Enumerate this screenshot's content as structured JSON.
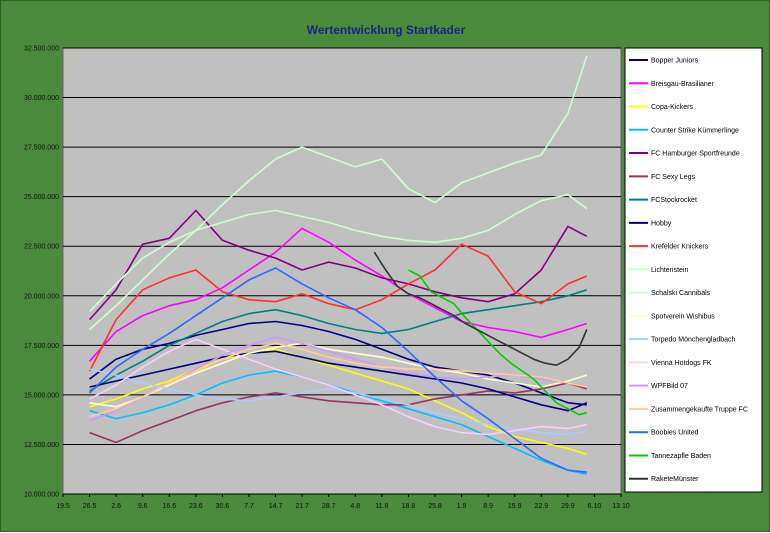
{
  "chart_data": {
    "type": "line",
    "title": "Wertentwicklung Startkader",
    "xlabel": "",
    "ylabel": "",
    "ylim": [
      10000000,
      32500000
    ],
    "y_ticks": [
      "10.000.000",
      "12.500.000",
      "15.000.000",
      "17.500.000",
      "20.000.000",
      "22.500.000",
      "25.000.000",
      "27.500.000",
      "30.000.000",
      "32.500.000"
    ],
    "y_tick_values": [
      10000000,
      12500000,
      15000000,
      17500000,
      20000000,
      22500000,
      25000000,
      27500000,
      30000000,
      32500000
    ],
    "x_ticks": [
      "19.5",
      "26.5",
      "2.6",
      "9.6",
      "16.6",
      "23.6",
      "30.6",
      "7.7",
      "14.7",
      "21.7",
      "28.7",
      "4.8",
      "11.8",
      "18.8",
      "25.8",
      "1.9",
      "8.9",
      "15.9",
      "22.9",
      "29.9",
      "6.10",
      "13.10"
    ],
    "x_day_range": [
      0,
      147
    ],
    "grid": true,
    "legend_position": "right",
    "colors": {
      "chart_background": "#4a8a3c",
      "plot_background": "#c0c0c0",
      "gridline": "#000000",
      "title": "#1a237e"
    },
    "series": [
      {
        "name": "Bopper Juniors",
        "color": "#000080",
        "x": [
          7,
          14,
          21,
          28,
          35,
          42,
          49,
          56,
          63,
          70,
          77,
          84,
          91,
          98,
          105,
          112,
          119,
          126,
          133,
          138
        ],
        "values": [
          15800000,
          16800000,
          17300000,
          17600000,
          18000000,
          18300000,
          18600000,
          18700000,
          18500000,
          18200000,
          17800000,
          17300000,
          16800000,
          16400000,
          16200000,
          16000000,
          15600000,
          15100000,
          14600000,
          14500000
        ]
      },
      {
        "name": "Breisgau-Brasilianer",
        "color": "#ff00ff",
        "x": [
          7,
          14,
          21,
          28,
          35,
          42,
          49,
          56,
          63,
          70,
          77,
          84,
          91,
          98,
          105,
          112,
          119,
          126,
          133,
          138
        ],
        "values": [
          16700000,
          18200000,
          19000000,
          19500000,
          19800000,
          20400000,
          21300000,
          22200000,
          23400000,
          22700000,
          21800000,
          21000000,
          20100000,
          19400000,
          18700000,
          18400000,
          18200000,
          17900000,
          18300000,
          18600000
        ]
      },
      {
        "name": "Copa-Kickers",
        "color": "#ffff00",
        "x": [
          7,
          14,
          21,
          28,
          35,
          42,
          49,
          56,
          63,
          70,
          77,
          84,
          91,
          98,
          105,
          112,
          119,
          126,
          133,
          138
        ],
        "values": [
          14400000,
          14800000,
          15300000,
          15700000,
          16300000,
          16800000,
          17100000,
          17300000,
          16900000,
          16500000,
          16100000,
          15700000,
          15300000,
          14700000,
          14100000,
          13400000,
          12900000,
          12600000,
          12300000,
          12000000
        ]
      },
      {
        "name": "Counter Strike Kümmerlinge",
        "color": "#00bfff",
        "x": [
          7,
          14,
          21,
          28,
          35,
          42,
          49,
          56,
          63,
          70,
          77,
          84,
          91,
          98,
          105,
          112,
          119,
          126,
          133,
          138
        ],
        "values": [
          14200000,
          13800000,
          14100000,
          14500000,
          15000000,
          15600000,
          16000000,
          16200000,
          15900000,
          15500000,
          15100000,
          14700000,
          14300000,
          13900000,
          13500000,
          12900000,
          12300000,
          11700000,
          11200000,
          11000000
        ]
      },
      {
        "name": "FC Hamburger Sportfreunde",
        "color": "#800080",
        "x": [
          7,
          14,
          21,
          28,
          35,
          42,
          49,
          56,
          63,
          70,
          77,
          84,
          91,
          98,
          105,
          112,
          119,
          126,
          133,
          138
        ],
        "values": [
          18800000,
          20300000,
          22600000,
          22900000,
          24300000,
          22800000,
          22300000,
          21900000,
          21300000,
          21700000,
          21400000,
          20900000,
          20600000,
          20200000,
          19900000,
          19700000,
          20100000,
          21300000,
          23500000,
          23000000
        ]
      },
      {
        "name": "FC Sexy Legs",
        "color": "#993366",
        "x": [
          7,
          14,
          21,
          28,
          35,
          42,
          49,
          56,
          63,
          70,
          77,
          84,
          91,
          98,
          105,
          112,
          119,
          126,
          133,
          138
        ],
        "values": [
          13100000,
          12600000,
          13200000,
          13700000,
          14200000,
          14600000,
          14900000,
          15100000,
          14900000,
          14700000,
          14600000,
          14500000,
          14500000,
          14800000,
          15000000,
          15200000,
          15100000,
          15300000,
          15600000,
          15300000
        ]
      },
      {
        "name": "FCStockrocket",
        "color": "#008080",
        "x": [
          7,
          14,
          21,
          28,
          35,
          42,
          49,
          56,
          63,
          70,
          77,
          84,
          91,
          98,
          105,
          112,
          119,
          126,
          133,
          138
        ],
        "values": [
          15200000,
          16000000,
          16700000,
          17500000,
          18100000,
          18700000,
          19100000,
          19300000,
          19000000,
          18600000,
          18300000,
          18100000,
          18300000,
          18700000,
          19100000,
          19300000,
          19500000,
          19700000,
          20000000,
          20300000
        ]
      },
      {
        "name": "Hobby",
        "color": "#000080",
        "x": [
          7,
          14,
          21,
          28,
          35,
          42,
          49,
          56,
          63,
          70,
          77,
          84,
          91,
          98,
          105,
          112,
          119,
          126,
          133,
          138
        ],
        "values": [
          15400000,
          15700000,
          16000000,
          16300000,
          16600000,
          16900000,
          17100000,
          17200000,
          16900000,
          16600000,
          16400000,
          16200000,
          16000000,
          15800000,
          15600000,
          15300000,
          14900000,
          14500000,
          14200000,
          14600000
        ]
      },
      {
        "name": "Krefelder Knickers",
        "color": "#ff3030",
        "x": [
          7,
          14,
          21,
          28,
          35,
          42,
          49,
          56,
          63,
          70,
          77,
          84,
          91,
          98,
          105,
          112,
          119,
          126,
          133,
          138
        ],
        "values": [
          16200000,
          18800000,
          20300000,
          20900000,
          21300000,
          20200000,
          19800000,
          19700000,
          20100000,
          19600000,
          19300000,
          19800000,
          20600000,
          21300000,
          22600000,
          22000000,
          20200000,
          19600000,
          20600000,
          21000000
        ]
      },
      {
        "name": "Lichtenstein",
        "color": "#ccffcc",
        "x": [
          7,
          14,
          21,
          28,
          35,
          42,
          49,
          56,
          63,
          70,
          77,
          84,
          91,
          98,
          105,
          112,
          119,
          126,
          133,
          138
        ],
        "values": [
          19200000,
          20600000,
          21900000,
          22700000,
          23300000,
          23700000,
          24100000,
          24300000,
          24000000,
          23700000,
          23300000,
          23000000,
          22800000,
          22700000,
          22900000,
          23300000,
          24100000,
          24800000,
          25100000,
          24400000
        ]
      },
      {
        "name": "Schalski Cannibals",
        "color": "#ccffcc",
        "x": [
          7,
          14,
          21,
          28,
          35,
          42,
          49,
          56,
          63,
          70,
          77,
          84,
          91,
          98,
          105,
          112,
          119,
          126,
          133,
          138
        ],
        "values": [
          18300000,
          19500000,
          20800000,
          22100000,
          23300000,
          24600000,
          25800000,
          26900000,
          27500000,
          27000000,
          26500000,
          26900000,
          25400000,
          24700000,
          25700000,
          26200000,
          26700000,
          27100000,
          29200000,
          32100000
        ]
      },
      {
        "name": "Spotverein Wishibus",
        "color": "#ffffcc",
        "x": [
          7,
          14,
          21,
          28,
          35,
          42,
          49,
          56,
          63,
          70,
          77,
          84,
          91,
          98,
          105,
          112,
          119,
          126,
          133,
          138
        ],
        "values": [
          14600000,
          14400000,
          14900000,
          15500000,
          16100000,
          16600000,
          17100000,
          17400000,
          17600000,
          17300000,
          17100000,
          16900000,
          16600000,
          16300000,
          16100000,
          15800000,
          15600000,
          15400000,
          15700000,
          16000000
        ]
      },
      {
        "name": "Torpedo Mönchengladbach",
        "color": "#aaccff",
        "x": [
          7,
          14,
          21,
          28,
          35,
          42,
          49,
          56,
          63,
          70,
          77,
          84,
          91,
          98,
          105,
          112,
          119,
          126,
          133,
          138
        ],
        "values": [
          16300000,
          16000000,
          15600000,
          15300000,
          15000000,
          14800000,
          14700000,
          14900000,
          15100000,
          15300000,
          15100000,
          14800000,
          14500000,
          14100000,
          13800000,
          13500000,
          13300000,
          13100000,
          13000000,
          13200000
        ]
      },
      {
        "name": "Vienna Hotdogs  FK",
        "color": "#ffccff",
        "x": [
          7,
          14,
          21,
          28,
          35,
          42,
          49,
          56,
          63,
          70,
          77,
          84,
          91,
          98,
          105,
          112,
          119,
          126,
          133,
          138
        ],
        "values": [
          14800000,
          15500000,
          16400000,
          17200000,
          17800000,
          17300000,
          16800000,
          16300000,
          15900000,
          15500000,
          15000000,
          14500000,
          13900000,
          13400000,
          13100000,
          13000000,
          13200000,
          13400000,
          13300000,
          13500000
        ]
      },
      {
        "name": "WPFBild 07",
        "color": "#cc99ff",
        "x": [
          7,
          14,
          21,
          28,
          35,
          42,
          49,
          56,
          63,
          70,
          77,
          84,
          91,
          98,
          105,
          112,
          119,
          126,
          133,
          138
        ],
        "values": [
          13700000,
          14200000,
          14900000,
          15600000,
          16300000,
          17000000,
          17500000,
          17900000,
          17600000,
          17200000,
          16800000,
          16400000,
          16100000,
          15900000,
          15800000,
          15900000,
          16000000,
          15800000,
          15600000,
          15400000
        ]
      },
      {
        "name": "Zusammengekaufte Truppe FC",
        "color": "#ffcc99",
        "x": [
          7,
          14,
          21,
          28,
          35,
          42,
          49,
          56,
          63,
          70,
          77,
          84,
          91,
          98,
          105,
          112,
          119,
          126,
          133,
          138
        ],
        "values": [
          13900000,
          14300000,
          14900000,
          15600000,
          16200000,
          16800000,
          17300000,
          17600000,
          17300000,
          16900000,
          16600000,
          16400000,
          16300000,
          16300000,
          16200000,
          16100000,
          16000000,
          15900000,
          15600000,
          15400000
        ]
      },
      {
        "name": "Boobies United",
        "color": "#3366ff",
        "x": [
          7,
          14,
          21,
          28,
          35,
          42,
          49,
          56,
          63,
          70,
          77,
          84,
          91,
          98,
          105,
          112,
          119,
          126,
          133,
          138
        ],
        "values": [
          15100000,
          16400000,
          17300000,
          18100000,
          19000000,
          19900000,
          20800000,
          21400000,
          20600000,
          19900000,
          19300000,
          18400000,
          17200000,
          15900000,
          14700000,
          13800000,
          12800000,
          11800000,
          11200000,
          11100000
        ]
      },
      {
        "name": "Tannezapfle Baden",
        "color": "#00cc00",
        "x": [
          91,
          94,
          97,
          100,
          103,
          106,
          109,
          112,
          115,
          118,
          121,
          124,
          127,
          130,
          133,
          136,
          138
        ],
        "values": [
          21300000,
          21000000,
          20200000,
          19900000,
          19600000,
          18900000,
          18300000,
          17700000,
          17100000,
          16600000,
          16200000,
          15800000,
          15200000,
          14600000,
          14300000,
          14000000,
          14100000
        ]
      },
      {
        "name": "RaketeMünster",
        "color": "#333333",
        "x": [
          82,
          85,
          88,
          91,
          94,
          97,
          100,
          103,
          106,
          109,
          112,
          115,
          118,
          121,
          124,
          127,
          130,
          133,
          136,
          138
        ],
        "values": [
          22200000,
          21300000,
          20500000,
          20100000,
          19900000,
          19600000,
          19300000,
          19000000,
          18600000,
          18300000,
          18000000,
          17700000,
          17400000,
          17100000,
          16800000,
          16600000,
          16500000,
          16800000,
          17400000,
          18300000
        ]
      }
    ]
  }
}
